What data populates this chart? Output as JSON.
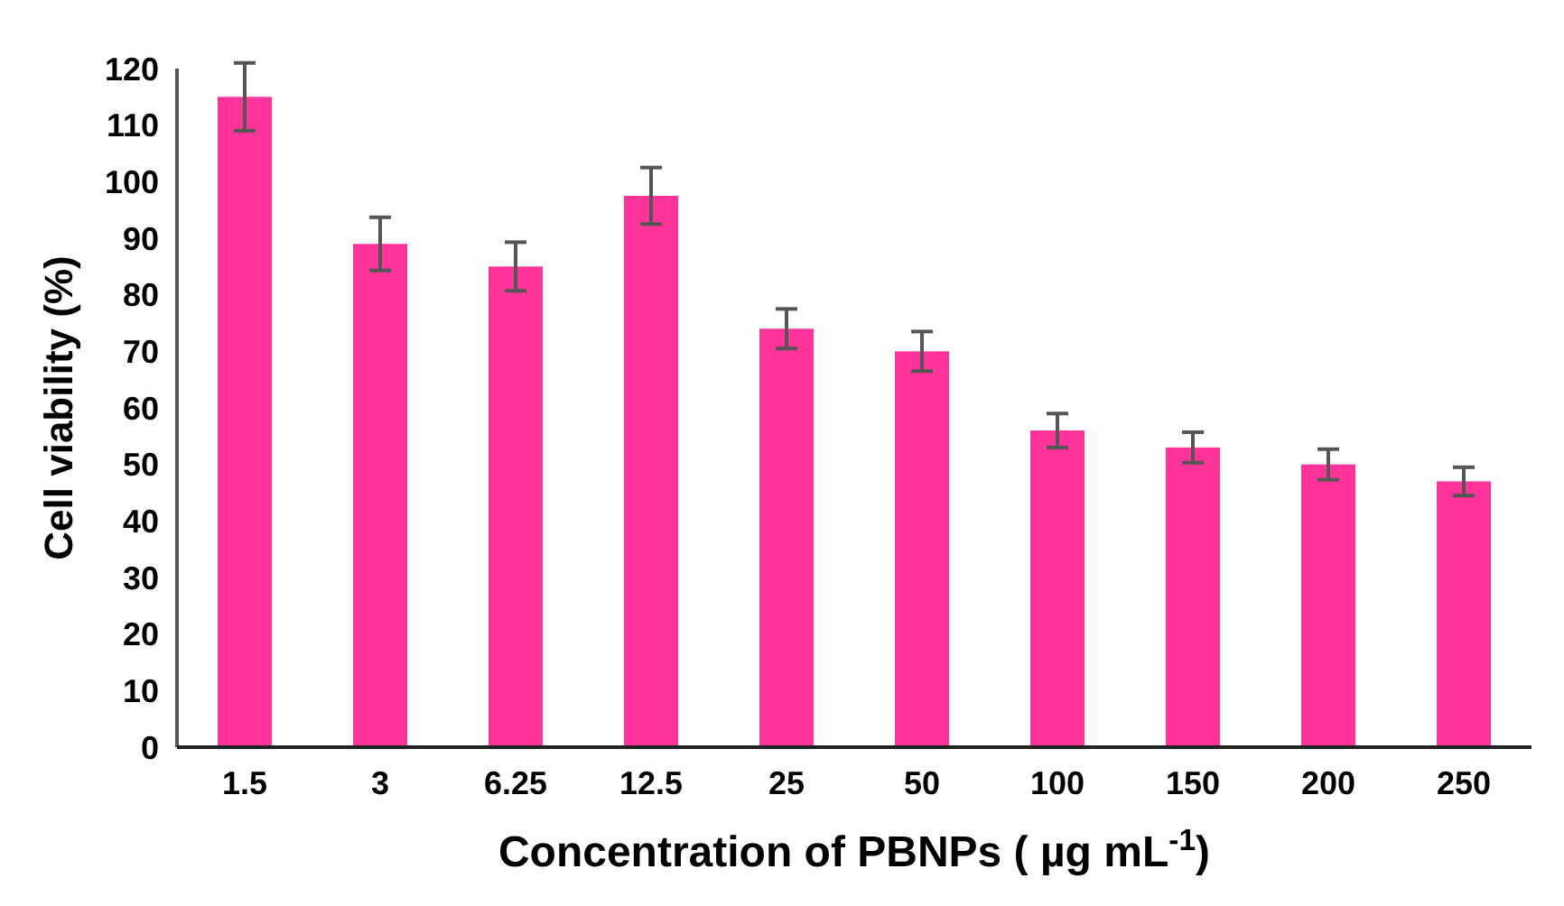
{
  "chart_data": {
    "type": "bar",
    "xlabel": "Concentration of PBNPs ( µg mL$^{-1}$)",
    "ylabel": "Cell viability (%)",
    "categories": [
      "1.5",
      "3",
      "6.25",
      "12.5",
      "25",
      "50",
      "100",
      "150",
      "200",
      "250"
    ],
    "values": [
      115,
      89,
      85,
      97.5,
      74,
      70,
      56,
      53,
      50,
      47
    ],
    "errors": [
      6,
      4.7,
      4.3,
      5,
      3.5,
      3.5,
      3,
      2.7,
      2.7,
      2.5
    ],
    "color": "#ff3399",
    "ylim": [
      0,
      120
    ],
    "yticks": [
      0,
      10,
      20,
      30,
      40,
      50,
      60,
      70,
      80,
      90,
      100,
      110,
      120
    ],
    "grid": false
  }
}
